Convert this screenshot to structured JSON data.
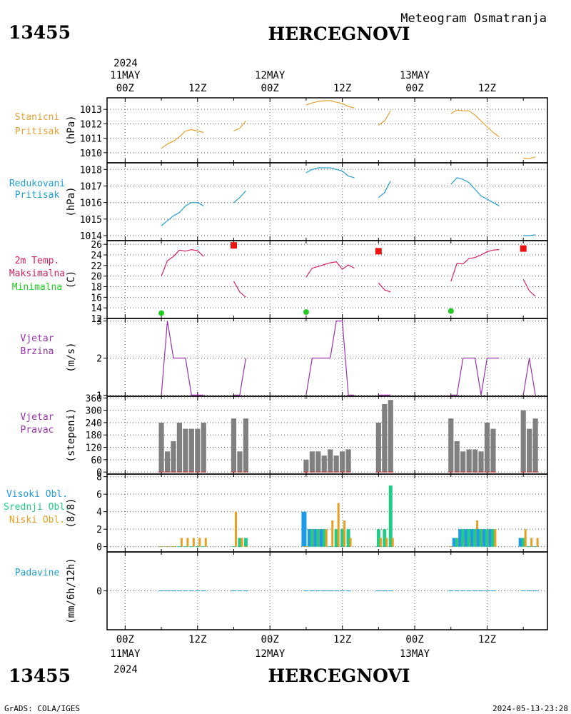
{
  "header": {
    "station_id": "13455",
    "station_name": "HERCEGNOVI",
    "subtitle": "Meteogram Osmatranja",
    "year": "2024",
    "footer_left": "GrADS: COLA/IGES",
    "footer_right": "2024-05-13-23:28"
  },
  "time_axis": {
    "hour_labels": [
      "00Z",
      "12Z",
      "00Z",
      "12Z",
      "00Z",
      "12Z"
    ],
    "hour_ticks": [
      0,
      12,
      24,
      36,
      48,
      60
    ],
    "day_labels": [
      {
        "hour": 0,
        "label": "11MAY"
      },
      {
        "hour": 24,
        "label": "12MAY"
      },
      {
        "hour": 48,
        "label": "13MAY"
      }
    ],
    "range": [
      -3,
      70
    ]
  },
  "colors": {
    "pressure": "#e8a030",
    "reduced": "#20a0d0",
    "tmax": "#d81e5b",
    "tmin": "#22cc22",
    "wind": "#9b30b0",
    "direction": "#808080",
    "high_cloud": "#1e9be6",
    "mid_cloud": "#22cc88",
    "low_cloud": "#e8a020",
    "precip": "#20a0d0",
    "maxmark": "#ee1111"
  },
  "chart_data": [
    {
      "type": "line",
      "panel": "station_pressure",
      "labels": [
        "Stanicni",
        "Pritisak"
      ],
      "ylabel": "(hPa)",
      "yticks": [
        1010,
        1011,
        1012,
        1013
      ],
      "ylim": [
        1009.3,
        1013.8
      ],
      "series": [
        {
          "x": [
            6,
            7,
            8,
            9,
            10,
            11,
            12,
            13
          ],
          "y": [
            1010.3,
            1010.6,
            1010.8,
            1011.1,
            1011.5,
            1011.6,
            1011.5,
            1011.4
          ]
        },
        {
          "x": [
            18,
            19,
            20
          ],
          "y": [
            1011.5,
            1011.7,
            1012.2
          ]
        },
        {
          "x": [
            30,
            31,
            32,
            33,
            34,
            35,
            36,
            37,
            38
          ],
          "y": [
            1013.3,
            1013.45,
            1013.55,
            1013.6,
            1013.6,
            1013.5,
            1013.4,
            1013.2,
            1013.1
          ]
        },
        {
          "x": [
            42,
            43,
            44
          ],
          "y": [
            1011.9,
            1012.2,
            1012.9
          ]
        },
        {
          "x": [
            54,
            55,
            56,
            57,
            58,
            59,
            60,
            61,
            62
          ],
          "y": [
            1012.7,
            1012.95,
            1012.9,
            1012.9,
            1012.6,
            1012.2,
            1011.8,
            1011.4,
            1011.1
          ]
        },
        {
          "x": [
            66,
            67,
            68
          ],
          "y": [
            1009.6,
            1009.6,
            1009.7
          ]
        }
      ]
    },
    {
      "type": "line",
      "panel": "reduced_pressure",
      "labels": [
        "Redukovani",
        "Pritisak"
      ],
      "ylabel": "(hPa)",
      "yticks": [
        1014,
        1015,
        1016,
        1017,
        1018
      ],
      "ylim": [
        1013.7,
        1018.4
      ],
      "series": [
        {
          "x": [
            6,
            7,
            8,
            9,
            10,
            11,
            12,
            13
          ],
          "y": [
            1014.6,
            1014.9,
            1015.2,
            1015.4,
            1015.8,
            1016.0,
            1016.0,
            1015.8
          ]
        },
        {
          "x": [
            18,
            19,
            20
          ],
          "y": [
            1016.0,
            1016.3,
            1016.7
          ]
        },
        {
          "x": [
            30,
            31,
            32,
            33,
            34,
            35,
            36,
            37,
            38
          ],
          "y": [
            1017.8,
            1018.0,
            1018.1,
            1018.1,
            1018.1,
            1018.0,
            1017.9,
            1017.6,
            1017.5
          ]
        },
        {
          "x": [
            42,
            43,
            44
          ],
          "y": [
            1016.3,
            1016.6,
            1017.3
          ]
        },
        {
          "x": [
            54,
            55,
            56,
            57,
            58,
            59,
            60,
            61,
            62
          ],
          "y": [
            1017.1,
            1017.5,
            1017.4,
            1017.2,
            1016.8,
            1016.4,
            1016.2,
            1016.0,
            1015.8
          ]
        },
        {
          "x": [
            66,
            67,
            68
          ],
          "y": [
            1014.0,
            1014.0,
            1014.05
          ]
        }
      ]
    },
    {
      "type": "line",
      "panel": "temperature",
      "labels": [
        "2m Temp.",
        "Maksimalna",
        "Minimalna"
      ],
      "ylabel": "(C)",
      "yticks": [
        12,
        14,
        16,
        18,
        20,
        22,
        24,
        26
      ],
      "ylim": [
        12,
        26.7
      ],
      "series": [
        {
          "x": [
            6,
            7,
            8,
            9,
            10,
            11,
            12,
            13
          ],
          "y": [
            20.0,
            22.9,
            23.7,
            24.9,
            24.7,
            25.0,
            24.8,
            23.7
          ]
        },
        {
          "x": [
            18,
            19,
            20
          ],
          "y": [
            19.0,
            17.0,
            16.0
          ]
        },
        {
          "x": [
            30,
            31,
            32,
            33,
            34,
            35,
            36,
            37,
            38
          ],
          "y": [
            19.8,
            21.5,
            21.8,
            22.2,
            22.5,
            22.7,
            21.3,
            22.1,
            21.5
          ]
        },
        {
          "x": [
            42,
            43,
            44
          ],
          "y": [
            18.7,
            17.4,
            17.0
          ]
        },
        {
          "x": [
            54,
            55,
            56,
            57,
            58,
            59,
            60,
            61,
            62
          ],
          "y": [
            19.0,
            22.4,
            22.3,
            23.3,
            23.5,
            24.0,
            24.6,
            24.9,
            25.0
          ]
        },
        {
          "x": [
            66,
            67,
            68
          ],
          "y": [
            19.4,
            17.2,
            16.2
          ]
        }
      ],
      "maxima": {
        "x": [
          18,
          42,
          66
        ],
        "y": [
          25.8,
          24.7,
          25.2
        ]
      },
      "minima": {
        "x": [
          6,
          30,
          54
        ],
        "y": [
          13.0,
          13.2,
          13.4
        ]
      }
    },
    {
      "type": "line",
      "panel": "wind_speed",
      "labels": [
        "Vjetar",
        "Brzina"
      ],
      "ylabel": "(m/s)",
      "yticks": [
        1,
        2,
        3
      ],
      "ylim": [
        0.97,
        3.07
      ],
      "series": [
        {
          "x": [
            6,
            7,
            8,
            9,
            10,
            11,
            12,
            13
          ],
          "y": [
            1,
            3,
            2,
            2,
            2,
            1,
            1,
            1
          ]
        },
        {
          "x": [
            18,
            19,
            20
          ],
          "y": [
            1,
            1,
            2
          ]
        },
        {
          "x": [
            30,
            31,
            32,
            33,
            34,
            35,
            36,
            37,
            38
          ],
          "y": [
            1,
            2,
            2,
            2,
            2,
            3,
            3,
            1,
            1
          ]
        },
        {
          "x": [
            42,
            43,
            44
          ],
          "y": [
            1,
            1,
            1
          ]
        },
        {
          "x": [
            54,
            55,
            56,
            57,
            58,
            59,
            60,
            61,
            62
          ],
          "y": [
            1,
            1,
            2,
            2,
            2,
            1,
            2,
            2,
            2
          ]
        },
        {
          "x": [
            66,
            67,
            68
          ],
          "y": [
            1,
            2,
            1
          ]
        }
      ]
    },
    {
      "type": "bar",
      "panel": "wind_direction",
      "labels": [
        "Vjetar",
        "Pravac"
      ],
      "ylabel": "(stepeni)",
      "yticks": [
        0,
        60,
        120,
        180,
        240,
        300,
        360
      ],
      "ylim": [
        -10,
        368
      ],
      "x": [
        6,
        7,
        8,
        9,
        10,
        11,
        12,
        13,
        18,
        19,
        20,
        30,
        31,
        32,
        33,
        34,
        35,
        36,
        37,
        42,
        43,
        44,
        54,
        55,
        56,
        57,
        58,
        59,
        60,
        61,
        66,
        67,
        68
      ],
      "values": [
        240,
        100,
        150,
        240,
        210,
        210,
        210,
        240,
        260,
        100,
        260,
        60,
        100,
        100,
        80,
        110,
        80,
        100,
        110,
        240,
        330,
        350,
        260,
        150,
        100,
        110,
        110,
        100,
        240,
        210,
        300,
        210,
        260
      ]
    },
    {
      "type": "bar",
      "panel": "clouds",
      "labels": [
        "Visoki Obl.",
        "Srednji Obl.",
        "Niski Obl."
      ],
      "ylabel": "(8/8)",
      "yticks": [
        0,
        2,
        4,
        6,
        8
      ],
      "ylim": [
        -0.6,
        8.3
      ],
      "x": [
        6,
        7,
        8,
        9,
        10,
        11,
        12,
        13,
        18,
        19,
        20,
        30,
        31,
        32,
        33,
        34,
        35,
        36,
        37,
        42,
        43,
        44,
        54,
        55,
        56,
        57,
        58,
        59,
        60,
        61,
        66,
        67,
        68
      ],
      "series": [
        {
          "name": "Visoki Obl.",
          "values": [
            0,
            0,
            0,
            0,
            0,
            0,
            0,
            0,
            0,
            0,
            0,
            4,
            2,
            2,
            2,
            0,
            0,
            0,
            0,
            0,
            0,
            0,
            0,
            1,
            2,
            2,
            2,
            2,
            2,
            2,
            1,
            0,
            0
          ]
        },
        {
          "name": "Srednji Obl.",
          "values": [
            0,
            0,
            0,
            0,
            0,
            0,
            0,
            0,
            0,
            1,
            1,
            0,
            2,
            2,
            2,
            0,
            2,
            2,
            2,
            2,
            2,
            7,
            0,
            1,
            2,
            2,
            2,
            2,
            2,
            2,
            1,
            0,
            0
          ]
        },
        {
          "name": "Niski Obl.",
          "values": [
            0,
            0,
            0,
            1,
            1,
            1,
            1,
            1,
            4,
            1,
            0,
            0,
            2,
            2,
            2,
            3,
            5,
            3,
            1,
            1,
            1,
            1,
            0,
            1,
            1,
            1,
            3,
            2,
            2,
            2,
            2,
            1,
            1
          ]
        }
      ]
    },
    {
      "type": "bar",
      "panel": "precipitation",
      "labels": [
        "Padavine"
      ],
      "ylabel": "(mm/6h/12h)",
      "yticks": [
        0
      ],
      "ylim": [
        -5,
        5
      ],
      "x": [
        6,
        7,
        8,
        9,
        10,
        11,
        12,
        13,
        18,
        19,
        20,
        30,
        31,
        32,
        33,
        34,
        35,
        36,
        37,
        42,
        43,
        44,
        54,
        55,
        56,
        57,
        58,
        59,
        60,
        61,
        66,
        67,
        68
      ],
      "values": [
        0,
        0,
        0,
        0,
        0,
        0,
        0,
        0,
        0,
        0,
        0,
        0,
        0,
        0,
        0,
        0,
        0,
        0,
        0,
        0,
        0,
        0,
        0,
        0,
        0,
        0,
        0,
        0,
        0,
        0,
        0,
        0,
        0
      ]
    }
  ]
}
